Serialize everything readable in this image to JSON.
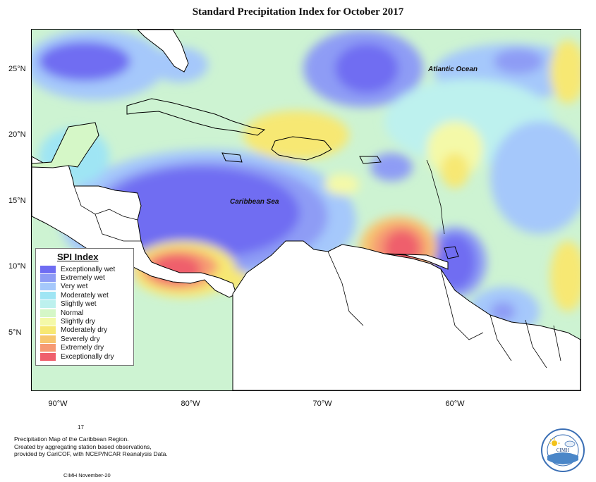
{
  "title": "Standard Precipitation Index for October 2017",
  "map": {
    "ocean_labels": [
      "Atlantic Ocean",
      "Caribbean Sea"
    ],
    "lat_ticks": [
      "25°N",
      "20°N",
      "15°N",
      "10°N",
      "5°N"
    ],
    "lon_ticks": [
      "90°W",
      "80°W",
      "70°W",
      "60°W"
    ]
  },
  "legend": {
    "title": "SPI Index",
    "items": [
      {
        "label": "Exceptionally wet",
        "color": "#6f6df2"
      },
      {
        "label": "Extremely wet",
        "color": "#8e9cf5"
      },
      {
        "label": "Very wet",
        "color": "#a5c8fb"
      },
      {
        "label": "Moderately wet",
        "color": "#9fe5f4"
      },
      {
        "label": "Slightly wet",
        "color": "#bdf1ee"
      },
      {
        "label": "Normal",
        "color": "#d5f7c7"
      },
      {
        "label": "Slightly dry",
        "color": "#f4f9a8"
      },
      {
        "label": "Moderately dry",
        "color": "#f7e873"
      },
      {
        "label": "Severely dry",
        "color": "#f7c66f"
      },
      {
        "label": "Extremely dry",
        "color": "#f69a73"
      },
      {
        "label": "Exceptionally dry",
        "color": "#ef5f6c"
      }
    ]
  },
  "notes": {
    "page_number": "17",
    "lines": [
      "Precipitation Map of the Caribbean Region.",
      "Created by aggregating station based observations,",
      "provided by CariCOF, with NCEP/NCAR Reanalysis Data."
    ],
    "credit": "CIMH November-20"
  },
  "logo": {
    "name": "CIMH"
  }
}
